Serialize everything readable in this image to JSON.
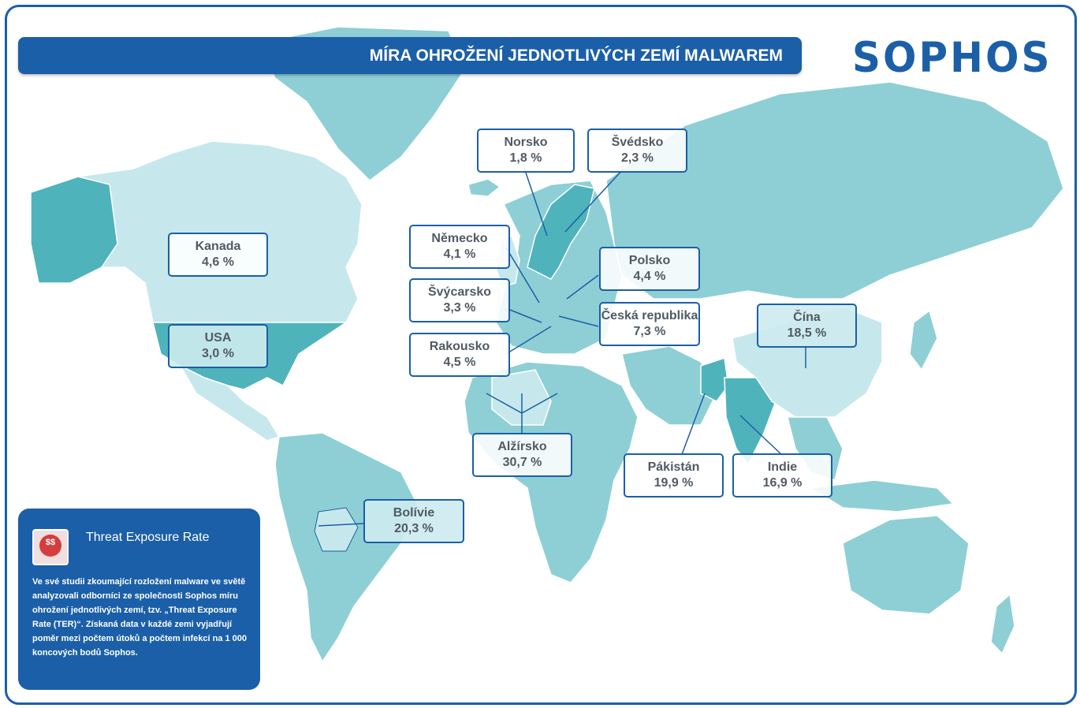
{
  "title": "MÍRA OHROŽENÍ JEDNOTLIVÝCH ZEMÍ MALWAREM",
  "brand": "SOPHOS",
  "colors": {
    "frame": "#1b5fa8",
    "land_light": "#c6e8ec",
    "land_mid": "#8dcfd5",
    "land_dark": "#4fb3bb"
  },
  "countries": [
    {
      "name": "Norsko",
      "value": "1,8 %"
    },
    {
      "name": "Švédsko",
      "value": "2,3 %"
    },
    {
      "name": "Kanada",
      "value": "4,6 %"
    },
    {
      "name": "Německo",
      "value": "4,1 %"
    },
    {
      "name": "Polsko",
      "value": "4,4 %"
    },
    {
      "name": "Švýcarsko",
      "value": "3,3 %"
    },
    {
      "name": "Česká republika",
      "value": "7,3 %"
    },
    {
      "name": "Čína",
      "value": "18,5 %"
    },
    {
      "name": "USA",
      "value": "3,0 %"
    },
    {
      "name": "Rakousko",
      "value": "4,5 %"
    },
    {
      "name": "Alžírsko",
      "value": "30,7 %"
    },
    {
      "name": "Pákistán",
      "value": "19,9 %"
    },
    {
      "name": "Indie",
      "value": "16,9 %"
    },
    {
      "name": "Bolívie",
      "value": "20,3 %"
    }
  ],
  "info": {
    "icon": "money-threat-icon",
    "icon_text": "$$",
    "heading": "Threat Exposure Rate",
    "text": "Ve své studii zkoumající rozložení malware ve světě analyzovali odborníci ze společnosti Sophos míru ohrožení jednotlivých zemí, tzv. „Threat Exposure Rate (TER)“. Získaná data v každé zemi vyjadřují poměr mezi počtem útoků a počtem infekcí na 1 000 koncových bodů Sophos."
  }
}
